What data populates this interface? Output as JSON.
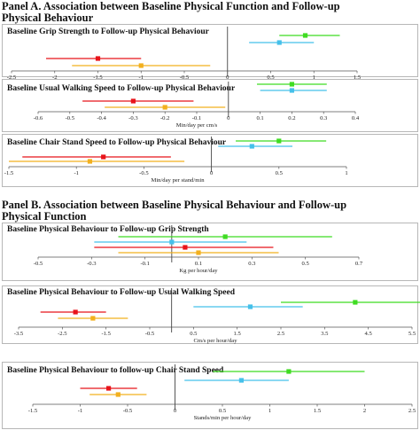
{
  "panel_a_title": "Panel A. Association between Baseline Physical Function and Follow-up Physical Behaviour",
  "panel_b_title": "Panel B. Association between Baseline Physical Behaviour and Follow-up Physical Function",
  "colors": {
    "red": "#e8141a",
    "orange": "#f2b01e",
    "green": "#3fdc22",
    "blue": "#45c0ea",
    "axis": "#555555",
    "zero": "#444444"
  },
  "chart_data": [
    {
      "type": "forest",
      "title": "Baseline Grip Strength to Follow-up Physical Behaviour",
      "xlabel": "Min/day per kg",
      "xlim": [
        -2.5,
        1.5
      ],
      "ticks": [
        "-2.5",
        "-2",
        "-1.5",
        "-1",
        "-0.5",
        "0",
        "0.5",
        "1",
        "1.5"
      ],
      "series": [
        {
          "color": "green",
          "estimate": 0.9,
          "lower": 0.6,
          "upper": 1.3
        },
        {
          "color": "blue",
          "estimate": 0.6,
          "lower": 0.25,
          "upper": 1.0
        },
        {
          "color": "red",
          "estimate": -1.5,
          "lower": -2.1,
          "upper": -1.0
        },
        {
          "color": "orange",
          "estimate": -1.0,
          "lower": -1.8,
          "upper": -0.2
        }
      ]
    },
    {
      "type": "forest",
      "title": "Baseline Usual Walking Speed to Follow-up Physical Behaviour",
      "xlabel": "Min/day per cm/s",
      "xlim": [
        -0.6,
        0.4
      ],
      "ticks": [
        "-0.6",
        "-0.5",
        "-0.4",
        "-0.3",
        "-0.2",
        "-0.1",
        "0",
        "0.1",
        "0.2",
        "0.3",
        "0.4"
      ],
      "series": [
        {
          "color": "green",
          "estimate": 0.2,
          "lower": 0.09,
          "upper": 0.31
        },
        {
          "color": "blue",
          "estimate": 0.2,
          "lower": 0.1,
          "upper": 0.31
        },
        {
          "color": "red",
          "estimate": -0.3,
          "lower": -0.46,
          "upper": -0.11
        },
        {
          "color": "orange",
          "estimate": -0.2,
          "lower": -0.39,
          "upper": -0.01
        }
      ]
    },
    {
      "type": "forest",
      "title": "Baseline Chair Stand Speed to Follow-up Physical Behaviour",
      "xlabel": "Min/day per stand/min",
      "xlim": [
        -1.5,
        1
      ],
      "ticks": [
        "-1.5",
        "-1",
        "-0.5",
        "0",
        "0.5",
        "1"
      ],
      "series": [
        {
          "color": "green",
          "estimate": 0.5,
          "lower": 0.18,
          "upper": 0.85
        },
        {
          "color": "blue",
          "estimate": 0.3,
          "lower": 0.05,
          "upper": 0.6
        },
        {
          "color": "red",
          "estimate": -0.8,
          "lower": -1.4,
          "upper": -0.3
        },
        {
          "color": "orange",
          "estimate": -0.9,
          "lower": -1.5,
          "upper": -0.2
        }
      ]
    },
    {
      "type": "forest",
      "title": "Baseline Physical Behaviour to Follow-up Grip Strength",
      "xlabel": "Kg per hour/day",
      "xlim": [
        -0.5,
        0.7
      ],
      "ticks": [
        "-0.5",
        "-0.3",
        "-0.1",
        "0.1",
        "0.3",
        "0.5",
        "0.7"
      ],
      "series": [
        {
          "color": "green",
          "estimate": 0.2,
          "lower": -0.2,
          "upper": 0.6
        },
        {
          "color": "blue",
          "estimate": 0.0,
          "lower": -0.29,
          "upper": 0.28
        },
        {
          "color": "red",
          "estimate": 0.05,
          "lower": -0.29,
          "upper": 0.38
        },
        {
          "color": "orange",
          "estimate": 0.1,
          "lower": -0.2,
          "upper": 0.4
        }
      ]
    },
    {
      "type": "forest",
      "title": "Baseline Physical Behaviour to Follow-up Usual Walking Speed",
      "xlabel": "Cm/s per hour/day",
      "xlim": [
        -3.5,
        5.5
      ],
      "ticks": [
        "-3.5",
        "-2.5",
        "-1.5",
        "-0.5",
        "0.5",
        "1.5",
        "2.5",
        "3.5",
        "4.5",
        "5.5"
      ],
      "series": [
        {
          "color": "green",
          "estimate": 4.2,
          "lower": 2.5,
          "upper": 5.8
        },
        {
          "color": "blue",
          "estimate": 1.8,
          "lower": 0.5,
          "upper": 3.0
        },
        {
          "color": "red",
          "estimate": -2.2,
          "lower": -3.0,
          "upper": -1.5
        },
        {
          "color": "orange",
          "estimate": -1.8,
          "lower": -2.6,
          "upper": -1.0
        }
      ]
    },
    {
      "type": "forest",
      "title": "Baseline Physical Behaviour to follow-up Chair Stand Speed",
      "xlabel": "Stands/min per hour/day",
      "xlim": [
        -1.5,
        2.5
      ],
      "ticks": [
        "-1.5",
        "-1",
        "-0.5",
        "0",
        "0.5",
        "1",
        "1.5",
        "2",
        "2.5"
      ],
      "series": [
        {
          "color": "green",
          "estimate": 1.2,
          "lower": 0.4,
          "upper": 2.0
        },
        {
          "color": "blue",
          "estimate": 0.7,
          "lower": 0.1,
          "upper": 1.2
        },
        {
          "color": "red",
          "estimate": -0.7,
          "lower": -1.0,
          "upper": -0.4
        },
        {
          "color": "orange",
          "estimate": -0.6,
          "lower": -0.9,
          "upper": -0.3
        }
      ]
    }
  ]
}
